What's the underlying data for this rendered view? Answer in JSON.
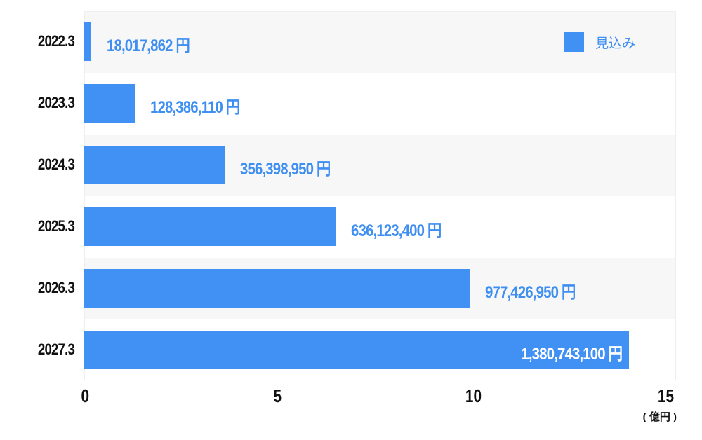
{
  "chart_data": {
    "type": "bar",
    "orientation": "horizontal",
    "categories": [
      "2022.3",
      "2023.3",
      "2024.3",
      "2025.3",
      "2026.3",
      "2027.3"
    ],
    "series": [
      {
        "name": "見込み",
        "values": [
          18017862,
          128386110,
          356398950,
          636123400,
          977426950,
          1380743100
        ]
      }
    ],
    "value_labels": [
      "18,017,862 円",
      "128,386,110 円",
      "356,398,950 円",
      "636,123,400 円",
      "977,426,950 円",
      "1,380,743,100 円"
    ],
    "xlim": [
      0,
      15
    ],
    "xticks": [
      "0",
      "5",
      "10",
      "15"
    ],
    "xunit": "( 億円 )",
    "legend": "top-right",
    "grid": false,
    "colors": {
      "bar": "#4191f5",
      "label": "#3f8ff2",
      "row_alt": "#f7f7f7"
    }
  }
}
